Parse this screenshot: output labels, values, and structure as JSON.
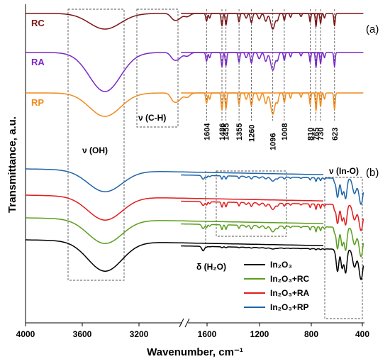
{
  "chart_data": [
    {
      "panel": "(a)",
      "type": "line",
      "series": [
        {
          "name": "RC",
          "color": "#7b1416",
          "values": []
        },
        {
          "name": "RA",
          "color": "#7a28c8",
          "values": []
        },
        {
          "name": "RP",
          "color": "#f08c1e",
          "values": []
        }
      ],
      "peak_labels": [
        "1604",
        "1486",
        "1455",
        "1355",
        "1260",
        "1096",
        "1008",
        "810",
        "765",
        "730",
        "623"
      ],
      "annotations": [
        "ν (OH)",
        "ν (C-H)"
      ]
    },
    {
      "panel": "(b)",
      "type": "line",
      "series": [
        {
          "name": "In₂O₃",
          "color": "#000000"
        },
        {
          "name": "In₂O₃+RC",
          "color": "#5a9e1e"
        },
        {
          "name": "In₂O₃+RA",
          "color": "#e01e1e"
        },
        {
          "name": "In₂O₃+RP",
          "color": "#1e64a8"
        }
      ],
      "annotations": [
        "ν (In-O)",
        "δ (H₂O)"
      ]
    }
  ],
  "axes": {
    "x_ticks": [
      "4000",
      "3600",
      "3200",
      "1600",
      "1200",
      "800",
      "400"
    ],
    "xlabel": "Wavenumber, cm⁻¹",
    "ylabel": "Transmittance, a.u.",
    "x_break": true
  },
  "labels": {
    "panel_a": "(a)",
    "panel_b": "(b)",
    "nu_oh": "ν (OH)",
    "nu_ch": "ν (C-H)",
    "nu_ino": "ν (In-O)",
    "delta_h2o": "δ (H₂O)",
    "rc": "RC",
    "ra": "RA",
    "rp": "RP"
  },
  "legend": [
    "In₂O₃",
    "In₂O₃+RC",
    "In₂O₃+RA",
    "In₂O₃+RP"
  ]
}
